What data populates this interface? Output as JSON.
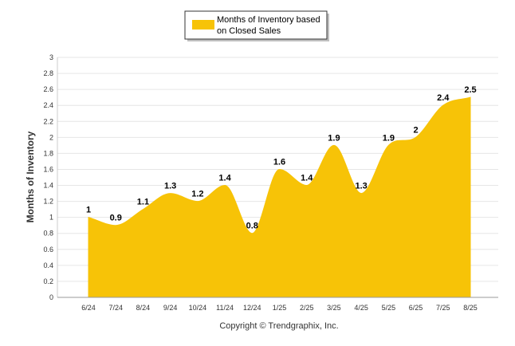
{
  "chart_data": {
    "type": "area",
    "categories": [
      "6/24",
      "7/24",
      "8/24",
      "9/24",
      "10/24",
      "11/24",
      "12/24",
      "1/25",
      "2/25",
      "3/25",
      "4/25",
      "5/25",
      "6/25",
      "7/25",
      "8/25"
    ],
    "series": [
      {
        "name": "Months of Inventory based on Closed Sales",
        "values": [
          1,
          0.9,
          1.1,
          1.3,
          1.2,
          1.4,
          0.8,
          1.6,
          1.4,
          1.9,
          1.3,
          1.9,
          2,
          2.4,
          2.5
        ],
        "color": "#F7C307"
      }
    ],
    "data_labels": [
      "1",
      "0.9",
      "1.1",
      "1.3",
      "1.2",
      "1.4",
      "0.8",
      "1.6",
      "1.4",
      "1.9",
      "1.3",
      "1.9",
      "2",
      "2.4",
      "2.5"
    ],
    "ylabel": "Months of Inventory",
    "xlabel": "",
    "ylim": [
      0,
      3
    ],
    "yticks": [
      "0",
      "0.2",
      "0.4",
      "0.6",
      "0.8",
      "1",
      "1.2",
      "1.4",
      "1.6",
      "1.8",
      "2",
      "2.2",
      "2.4",
      "2.6",
      "2.8",
      "3"
    ],
    "grid": true,
    "legend_position": "top-center",
    "legend_lines": [
      "Months of Inventory based",
      "on Closed Sales"
    ]
  },
  "footer": {
    "copyright": "Copyright © Trendgraphix, Inc."
  }
}
